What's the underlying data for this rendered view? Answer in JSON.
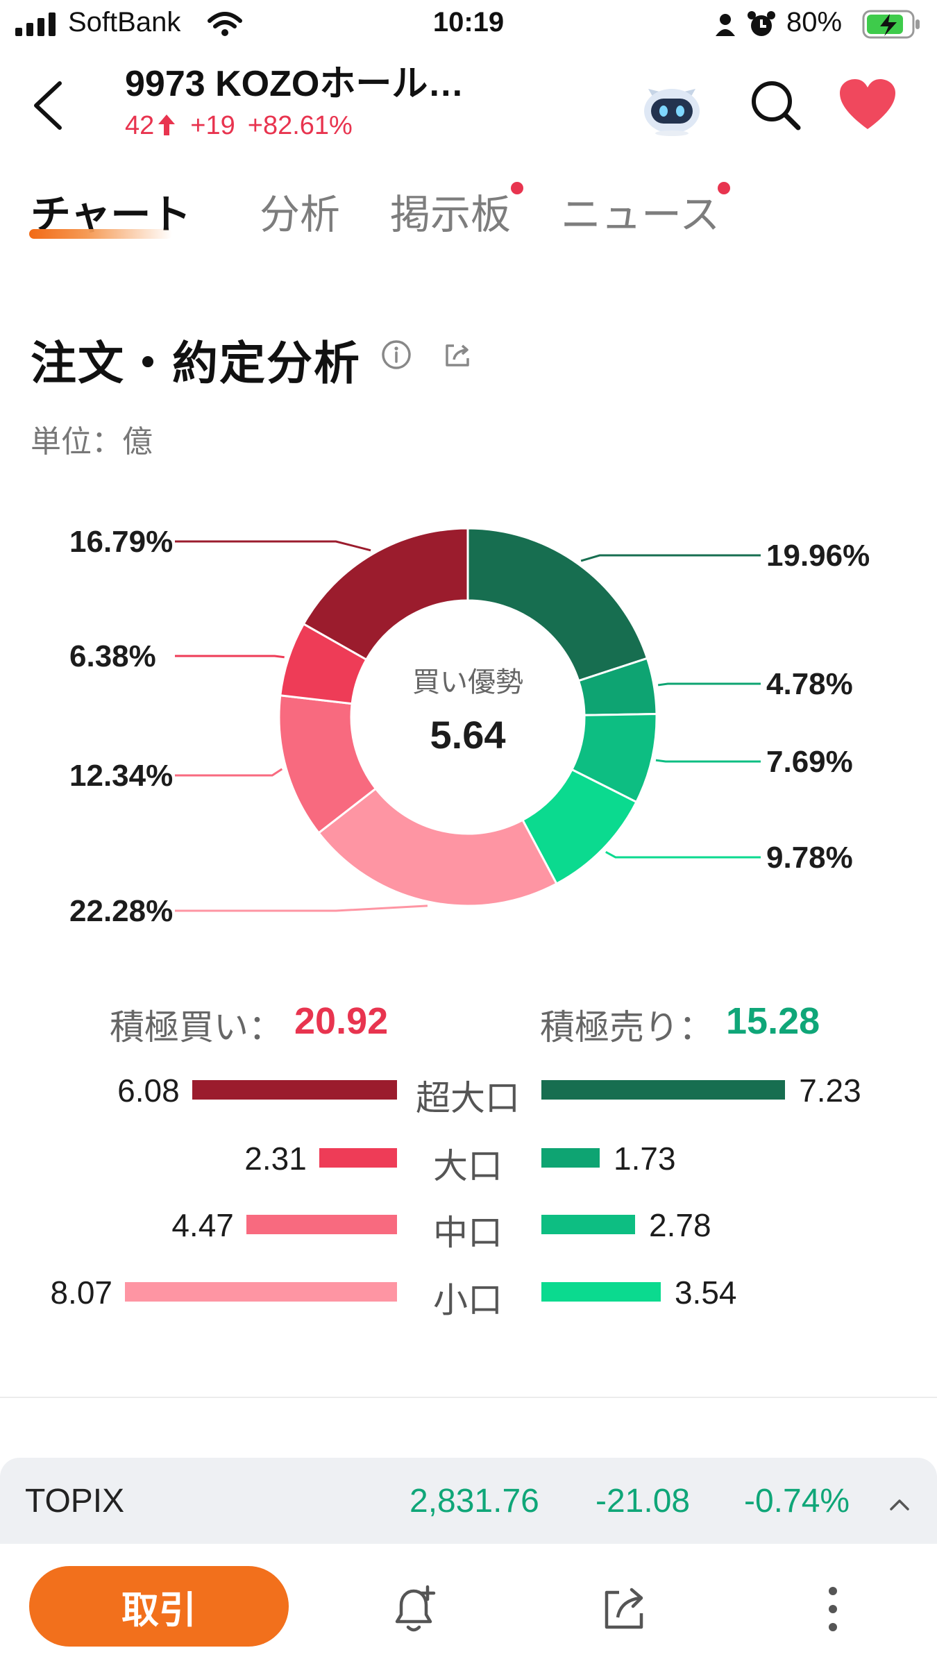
{
  "status_bar": {
    "carrier": "SoftBank",
    "time": "10:19",
    "battery": "80%"
  },
  "header": {
    "title": "9973 KOZOホール…",
    "price": "42",
    "change": "+19",
    "change_pct": "+82.61%"
  },
  "tabs": [
    {
      "label": "チャート",
      "active": true,
      "badge": false
    },
    {
      "label": "分析",
      "active": false,
      "badge": false
    },
    {
      "label": "掲示板",
      "active": false,
      "badge": true
    },
    {
      "label": "ニュース",
      "active": false,
      "badge": true
    }
  ],
  "section": {
    "title": "注文・約定分析",
    "unit": "単位：億"
  },
  "chart_data": {
    "type": "pie",
    "center_label": "買い優勢",
    "center_value": "5.64",
    "slices": [
      {
        "label": "19.96%",
        "value": 19.96,
        "color": "#176e50"
      },
      {
        "label": "4.78%",
        "value": 4.78,
        "color": "#0ea472"
      },
      {
        "label": "7.69%",
        "value": 7.69,
        "color": "#0dbe82"
      },
      {
        "label": "9.78%",
        "value": 9.78,
        "color": "#0bda8f"
      },
      {
        "label": "22.28%",
        "value": 22.28,
        "color": "#fe95a3"
      },
      {
        "label": "12.34%",
        "value": 12.34,
        "color": "#f86a7f"
      },
      {
        "label": "6.38%",
        "value": 6.38,
        "color": "#ee3c57"
      },
      {
        "label": "16.79%",
        "value": 16.79,
        "color": "#9b1c2d"
      }
    ]
  },
  "totals": {
    "buy_label": "積極買い：",
    "buy_value": "20.92",
    "sell_label": "積極売り：",
    "sell_value": "15.28"
  },
  "breakdown": [
    {
      "category": "超大口",
      "buy": 6.08,
      "buy_label": "6.08",
      "sell": 7.23,
      "sell_label": "7.23",
      "buy_color": "#9b1c2d",
      "sell_color": "#176e50"
    },
    {
      "category": "大口",
      "buy": 2.31,
      "buy_label": "2.31",
      "sell": 1.73,
      "sell_label": "1.73",
      "buy_color": "#ee3c57",
      "sell_color": "#0ea472"
    },
    {
      "category": "中口",
      "buy": 4.47,
      "buy_label": "4.47",
      "sell": 2.78,
      "sell_label": "2.78",
      "buy_color": "#f86a7f",
      "sell_color": "#0dbe82"
    },
    {
      "category": "小口",
      "buy": 8.07,
      "buy_label": "8.07",
      "sell": 3.54,
      "sell_label": "3.54",
      "buy_color": "#fe95a3",
      "sell_color": "#0bda8f"
    }
  ],
  "index": {
    "name": "TOPIX",
    "value": "2,831.76",
    "change": "-21.08",
    "change_pct": "-0.74%"
  },
  "bottom_bar": {
    "trade_label": "取引"
  },
  "icons": [
    "back-icon",
    "robot-icon",
    "search-icon",
    "heart-icon",
    "info-icon",
    "share-icon",
    "chevron-up-icon",
    "bell-plus-icon",
    "share-out-icon",
    "more-vertical-icon"
  ]
}
